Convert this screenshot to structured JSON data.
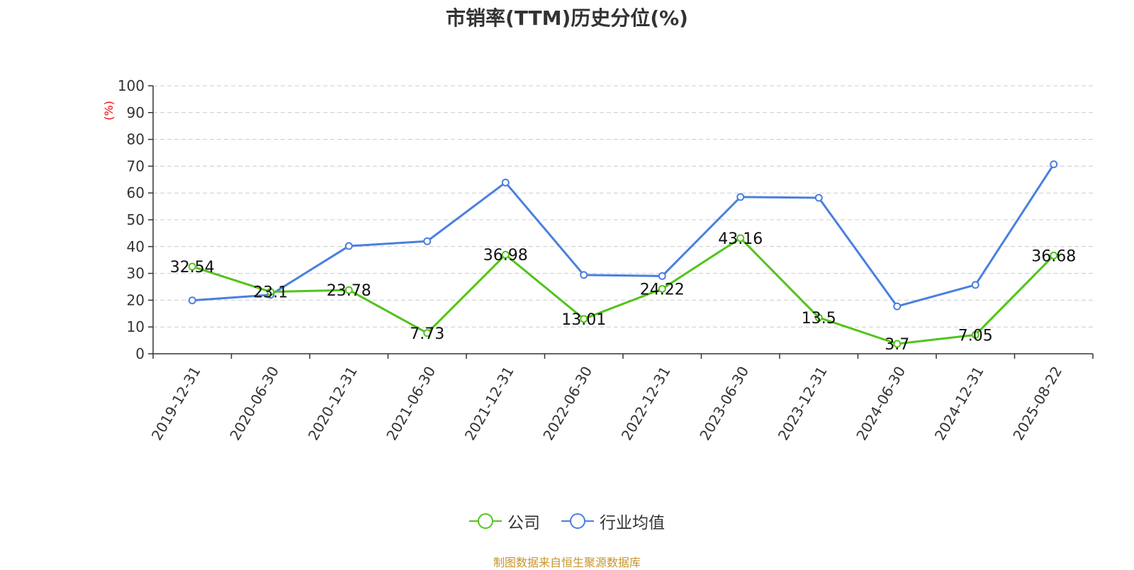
{
  "chart_data": {
    "type": "line",
    "title": "市销率(TTM)历史分位(%)",
    "ylabel": "(%)",
    "xlabel": "",
    "ylim": [
      0,
      100
    ],
    "yticks": [
      0,
      10,
      20,
      30,
      40,
      50,
      60,
      70,
      80,
      90,
      100
    ],
    "grid": true,
    "legend_position": "bottom-center",
    "categories": [
      "2019-12-31",
      "2020-06-30",
      "2020-12-31",
      "2021-06-30",
      "2021-12-31",
      "2022-06-30",
      "2022-12-31",
      "2023-06-30",
      "2023-12-31",
      "2024-06-30",
      "2024-12-31",
      "2025-08-22"
    ],
    "series": [
      {
        "name": "公司",
        "color": "#52c41a",
        "values": [
          32.54,
          23.1,
          23.78,
          7.73,
          36.98,
          13.01,
          24.22,
          43.16,
          13.5,
          3.7,
          7.05,
          36.68
        ],
        "labels": [
          "32.54",
          "23.1",
          "23.78",
          "7.73",
          "36.98",
          "13.01",
          "24.22",
          "43.16",
          "13.5",
          "3.7",
          "7.05",
          "36.68"
        ]
      },
      {
        "name": "行业均值",
        "color": "#4a7fe0",
        "values": [
          19.9,
          22.0,
          40.2,
          42.0,
          63.9,
          29.4,
          29.0,
          58.5,
          58.2,
          17.7,
          25.7,
          70.7
        ]
      }
    ]
  },
  "source": "制图数据来自恒生聚源数据库"
}
